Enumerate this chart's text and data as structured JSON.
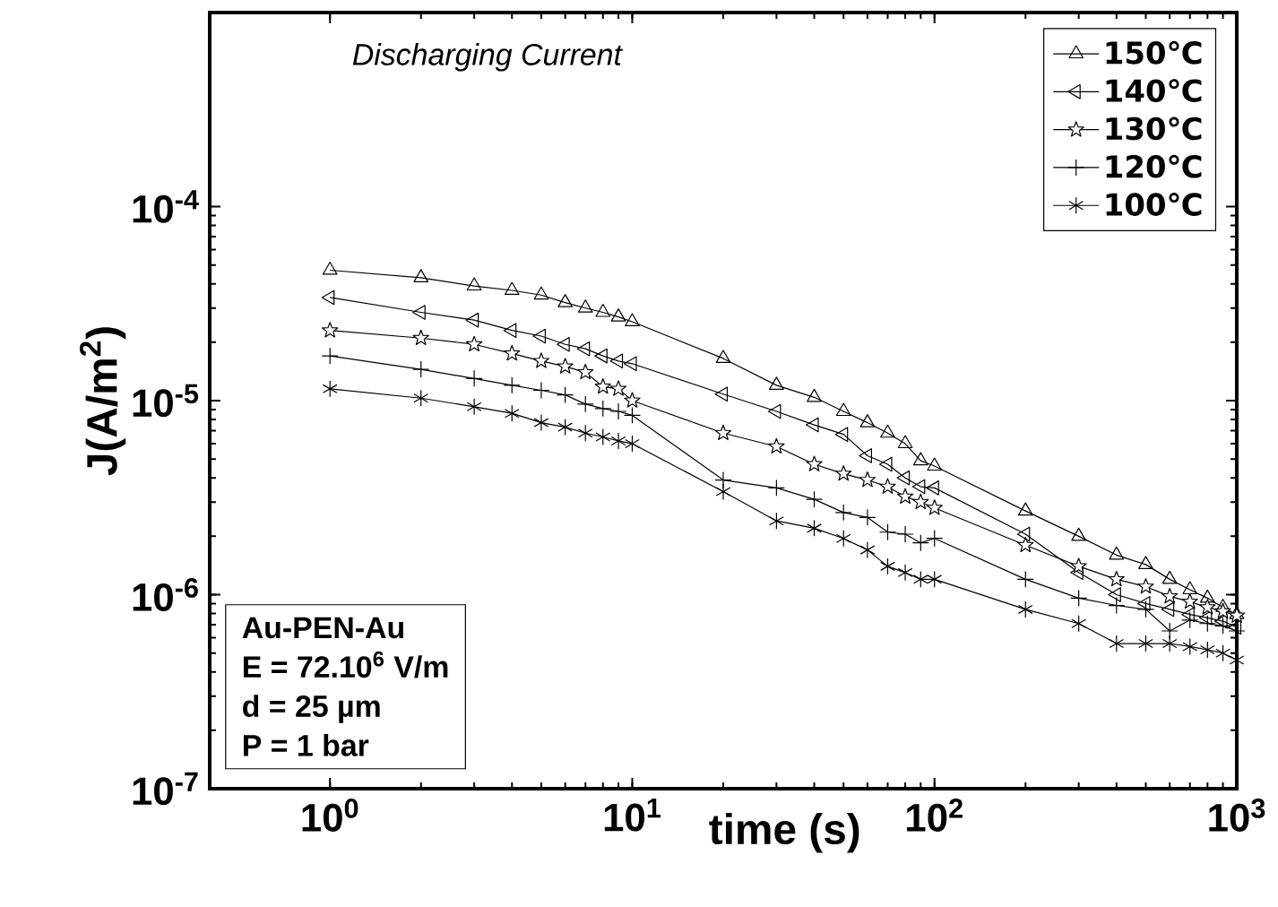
{
  "chart_data": {
    "type": "line",
    "title": "Discharging Current",
    "xlabel": "time (s)",
    "ylabel": "J(A/m$^{2}$)",
    "log": "xy",
    "xlim": [
      0.4,
      1000
    ],
    "ylim": [
      1e-07,
      0.001
    ],
    "xticks": [
      {
        "value": 1,
        "label": "10$^{0}$"
      },
      {
        "value": 10,
        "label": "10$^{1}$"
      },
      {
        "value": 100,
        "label": "10$^{2}$"
      },
      {
        "value": 1000,
        "label": "10$^{3}$"
      }
    ],
    "yticks": [
      {
        "value": 1e-07,
        "label": "10$^{-7}$"
      },
      {
        "value": 1e-06,
        "label": "10$^{-6}$"
      },
      {
        "value": 1e-05,
        "label": "10$^{-5}$"
      },
      {
        "value": 0.0001,
        "label": "10$^{-4}$"
      }
    ],
    "x": [
      1,
      2,
      3,
      4,
      5,
      6,
      7,
      8,
      9,
      10,
      20,
      30,
      40,
      50,
      60,
      70,
      80,
      90,
      100,
      200,
      300,
      400,
      500,
      600,
      700,
      800,
      900,
      1000
    ],
    "legend": "top right",
    "annotations": [
      "Au-PEN-Au",
      "E = 72.10$^{6}$ V/m",
      "d = 25 µm",
      "P = 1 bar"
    ],
    "series": [
      {
        "name": "150℃",
        "color": "#000000",
        "marker": "triangle",
        "values": [
          4.7e-05,
          4.3e-05,
          3.9e-05,
          3.7e-05,
          3.5e-05,
          3.2e-05,
          3e-05,
          2.85e-05,
          2.7e-05,
          2.55e-05,
          1.65e-05,
          1.2e-05,
          1.04e-05,
          8.8e-06,
          7.7e-06,
          6.8e-06,
          6e-06,
          4.9e-06,
          4.6e-06,
          2.7e-06,
          2e-06,
          1.6e-06,
          1.43e-06,
          1.2e-06,
          1.06e-06,
          9.6e-07,
          8.6e-07,
          7.9e-07
        ]
      },
      {
        "name": "140℃",
        "color": "#000000",
        "marker": "triangle-left",
        "values": [
          3.4e-05,
          2.85e-05,
          2.6e-05,
          2.3e-05,
          2.15e-05,
          1.95e-05,
          1.85e-05,
          1.7e-05,
          1.6e-05,
          1.55e-05,
          1.08e-05,
          8.8e-06,
          7.5e-06,
          6.7e-06,
          5.2e-06,
          4.7e-06,
          4e-06,
          3.6e-06,
          3.55e-06,
          2.05e-06,
          1.3e-06,
          1e-06,
          9e-07,
          8.4e-07,
          7.9e-07,
          7.6e-07,
          7.3e-07,
          6.8e-07
        ]
      },
      {
        "name": "130℃",
        "color": "#000000",
        "marker": "star",
        "values": [
          2.3e-05,
          2.1e-05,
          1.95e-05,
          1.75e-05,
          1.6e-05,
          1.5e-05,
          1.4e-05,
          1.18e-05,
          1.15e-05,
          1e-05,
          6.8e-06,
          5.8e-06,
          4.7e-06,
          4.2e-06,
          3.9e-06,
          3.6e-06,
          3.2e-06,
          3e-06,
          2.8e-06,
          1.8e-06,
          1.4e-06,
          1.2e-06,
          1.1e-06,
          9.8e-07,
          9.2e-07,
          8.6e-07,
          8.2e-07,
          7.8e-07
        ]
      },
      {
        "name": "120℃",
        "color": "#000000",
        "marker": "plus",
        "values": [
          1.7e-05,
          1.45e-05,
          1.3e-05,
          1.2e-05,
          1.13e-05,
          1.07e-05,
          9.6e-06,
          9.1e-06,
          8.8e-06,
          8.4e-06,
          3.9e-06,
          3.55e-06,
          3.1e-06,
          2.65e-06,
          2.5e-06,
          2.1e-06,
          2.05e-06,
          1.85e-06,
          1.95e-06,
          1.2e-06,
          9.6e-07,
          8.8e-07,
          8.4e-07,
          6.5e-07,
          7.4e-07,
          7.1e-07,
          6.9e-07,
          6.5e-07
        ]
      },
      {
        "name": "100℃",
        "color": "#000000",
        "marker": "cross",
        "values": [
          1.15e-05,
          1.03e-05,
          9.3e-06,
          8.6e-06,
          7.7e-06,
          7.3e-06,
          6.8e-06,
          6.5e-06,
          6.2e-06,
          6e-06,
          3.4e-06,
          2.4e-06,
          2.2e-06,
          1.95e-06,
          1.7e-06,
          1.4e-06,
          1.3e-06,
          1.2e-06,
          1.2e-06,
          8.4e-07,
          7.1e-07,
          5.6e-07,
          5.6e-07,
          5.6e-07,
          5.4e-07,
          5.2e-07,
          5e-07,
          4.6e-07
        ]
      }
    ]
  }
}
